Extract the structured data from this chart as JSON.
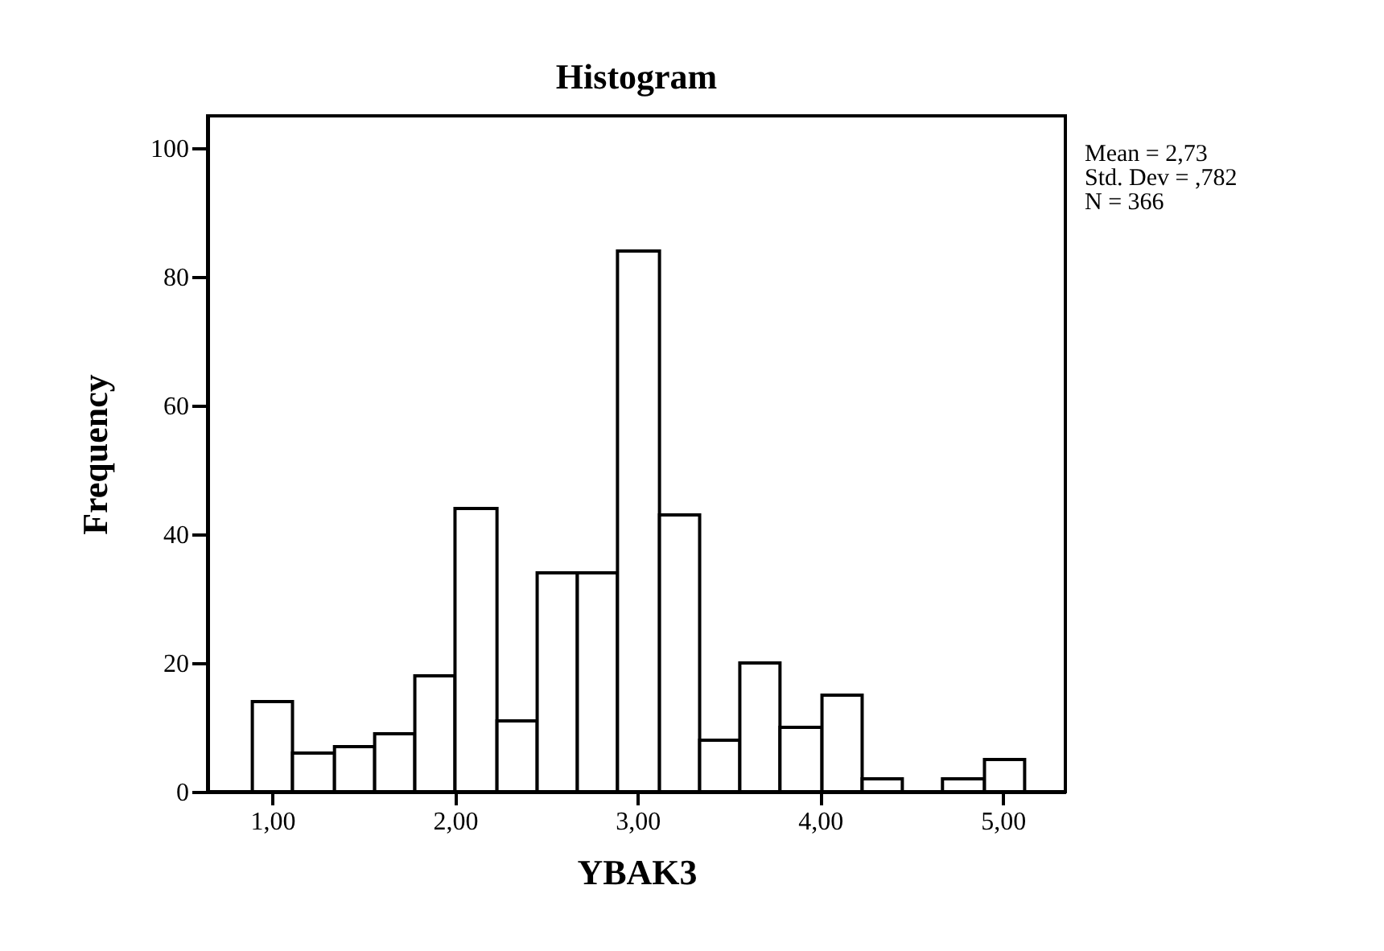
{
  "chart_data": {
    "type": "histogram",
    "title": "Histogram",
    "xlabel": "YBAK3",
    "ylabel": "Frequency",
    "bins": [
      0.89,
      1.11,
      1.34,
      1.56,
      1.78,
      2.0,
      2.23,
      2.45,
      2.67,
      2.89,
      3.12,
      3.34,
      3.56,
      3.78,
      4.01,
      4.23,
      4.45,
      4.67,
      4.9,
      5.12
    ],
    "values": [
      14,
      6,
      7,
      9,
      18,
      44,
      11,
      34,
      34,
      84,
      43,
      8,
      20,
      10,
      15,
      2,
      0,
      2,
      5
    ],
    "color": "#ffffff",
    "xlim": [
      0.645,
      5.343
    ],
    "ylim": [
      0,
      105
    ],
    "xticks": [
      {
        "value": 1,
        "label": "1,00"
      },
      {
        "value": 2,
        "label": "2,00"
      },
      {
        "value": 3,
        "label": "3,00"
      },
      {
        "value": 4,
        "label": "4,00"
      },
      {
        "value": 5,
        "label": "5,00"
      }
    ],
    "yticks": [
      0,
      20,
      40,
      60,
      80,
      100
    ],
    "annotations": [
      "Mean = 2,73",
      "Std. Dev  = ,782",
      "N = 366"
    ]
  }
}
